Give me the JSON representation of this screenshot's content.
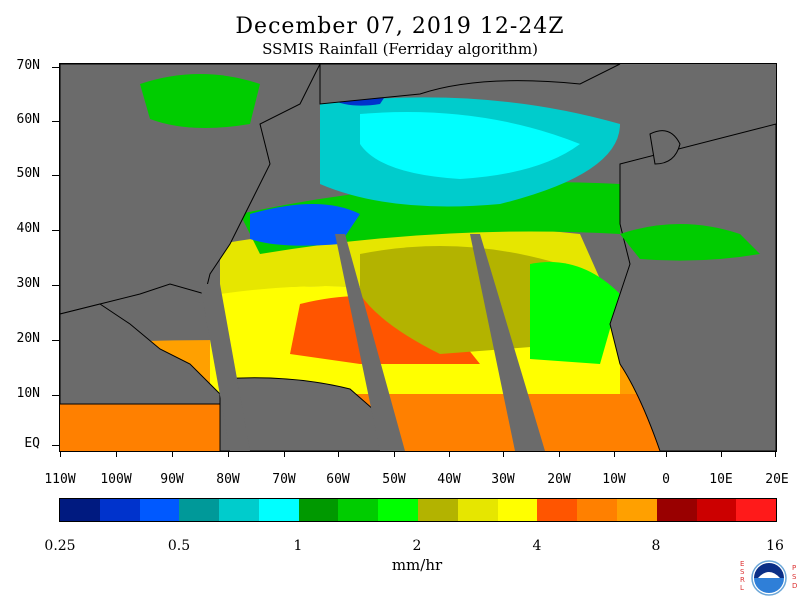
{
  "title": "December 07, 2019 12-24Z",
  "subtitle": "SSMIS Rainfall (Ferriday algorithm)",
  "y_axis_labels": [
    "70N",
    "60N",
    "50N",
    "40N",
    "30N",
    "20N",
    "10N",
    "EQ"
  ],
  "x_axis_labels": [
    "110W",
    "100W",
    "90W",
    "80W",
    "70W",
    "60W",
    "50W",
    "40W",
    "30W",
    "20W",
    "10W",
    "0",
    "10E",
    "20E"
  ],
  "colorbar": {
    "colors": [
      "#001a80",
      "#0033cc",
      "#0059ff",
      "#009999",
      "#00cccc",
      "#00ffff",
      "#009900",
      "#00cc00",
      "#00ff00",
      "#b3b300",
      "#e6e600",
      "#ffff00",
      "#ff5500",
      "#ff8000",
      "#ffa000",
      "#990000",
      "#cc0000",
      "#ff1a1a"
    ],
    "tick_labels": [
      "0.25",
      "0.5",
      "1",
      "2",
      "4",
      "8",
      "16"
    ]
  },
  "units": "mm/hr",
  "logo": {
    "name": "noaa-logo",
    "left_letters": "ESRL",
    "right_letters": "PSD"
  },
  "colors": {
    "land": "#6b6b6b",
    "coastline": "#000000",
    "no_data_swath": "#6b6b6b"
  }
}
